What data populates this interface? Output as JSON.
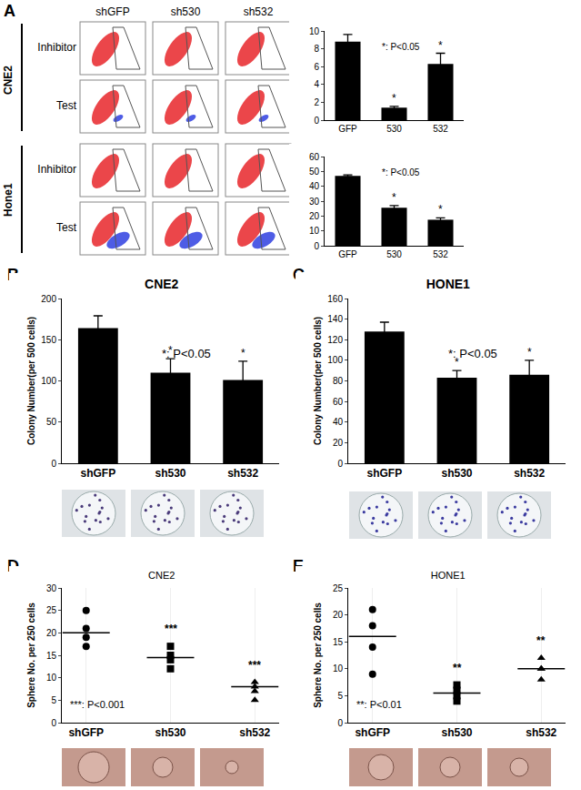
{
  "panel_labels": [
    "A",
    "B",
    "C",
    "D",
    "E"
  ],
  "flow_cytometry": {
    "columns": [
      "shGFP",
      "sh530",
      "sh532"
    ],
    "groups": [
      {
        "name": "CNE2",
        "rows": [
          "Inhibitor",
          "Test"
        ]
      },
      {
        "name": "Hone1",
        "rows": [
          "Inhibitor",
          "Test"
        ]
      }
    ]
  },
  "chart_data": [
    {
      "type": "bar",
      "categories": [
        "GFP",
        "530",
        "532"
      ],
      "values": [
        8.8,
        1.4,
        6.3
      ],
      "errors": [
        0.8,
        0.15,
        1.2
      ],
      "significance": [
        null,
        "*",
        "*"
      ],
      "annotations": [
        {
          "text": "*: P<0.05"
        }
      ],
      "color": "#000000",
      "ylim": [
        0,
        10
      ],
      "yticks": [
        0,
        2,
        4,
        6,
        8,
        10
      ],
      "grid": false
    },
    {
      "type": "bar",
      "categories": [
        "GFP",
        "530",
        "532"
      ],
      "values": [
        47,
        25.5,
        17.5
      ],
      "errors": [
        0.7,
        1.5,
        1.2
      ],
      "significance": [
        null,
        "*",
        "*"
      ],
      "annotations": [
        {
          "text": "*: P<0.05"
        }
      ],
      "color": "#000000",
      "ylim": [
        0,
        60
      ],
      "yticks": [
        0,
        10,
        20,
        30,
        40,
        50,
        60
      ],
      "grid": false
    },
    {
      "type": "bar",
      "title": "CNE2",
      "y_label": "Colony Number(per 500 cells)",
      "categories": [
        "shGFP",
        "sh530",
        "sh532"
      ],
      "values": [
        164,
        110,
        101
      ],
      "errors": [
        15,
        17,
        23
      ],
      "significance": [
        null,
        "*",
        "*"
      ],
      "annotations": [
        {
          "text": "*: P<0.05"
        }
      ],
      "color": "#000000",
      "ylim": [
        0,
        200
      ],
      "yticks": [
        0,
        50,
        100,
        150,
        200
      ],
      "grid": false
    },
    {
      "type": "bar",
      "title": "HONE1",
      "y_label": "Colony Number(per 500 cells)",
      "categories": [
        "shGFP",
        "sh530",
        "sh532"
      ],
      "values": [
        128,
        83,
        86
      ],
      "errors": [
        9,
        7,
        14
      ],
      "significance": [
        null,
        "*",
        "*"
      ],
      "annotations": [
        {
          "text": "*: P<0.05"
        }
      ],
      "color": "#000000",
      "ylim": [
        0,
        160
      ],
      "yticks": [
        0,
        20,
        40,
        60,
        80,
        100,
        120,
        140,
        160
      ],
      "grid": false
    },
    {
      "type": "scatter",
      "title": "CNE2",
      "y_label": "Sphere No. per 250 cells",
      "color": "#000000",
      "series": [
        {
          "name": "shGFP",
          "values": [
            25,
            21,
            19,
            17
          ],
          "mean": 20,
          "marker": "circle",
          "significance": null
        },
        {
          "name": "sh530",
          "values": [
            17,
            15,
            14,
            12
          ],
          "mean": 14.5,
          "marker": "square",
          "significance": "***"
        },
        {
          "name": "sh532",
          "values": [
            9,
            8,
            7,
            5
          ],
          "mean": 8,
          "marker": "triangle-up",
          "significance": "***"
        }
      ],
      "annotations": [
        {
          "text": "***: P<0.001"
        }
      ],
      "ylim": [
        0,
        30
      ],
      "yticks": [
        0,
        5,
        10,
        15,
        20,
        25,
        30
      ],
      "grid": false
    },
    {
      "type": "scatter",
      "title": "HONE1",
      "y_label": "Sphere No. per 250 cells",
      "color": "#000000",
      "series": [
        {
          "name": "shGFP",
          "values": [
            21,
            18,
            14,
            9
          ],
          "mean": 16,
          "marker": "circle",
          "significance": null
        },
        {
          "name": "sh530",
          "values": [
            7,
            6,
            5,
            4
          ],
          "mean": 5.5,
          "marker": "square",
          "significance": "**"
        },
        {
          "name": "sh532",
          "values": [
            12,
            10,
            10,
            8
          ],
          "mean": 10,
          "marker": "triangle-up",
          "significance": "**"
        }
      ],
      "annotations": [
        {
          "text": "**: P<0.01"
        }
      ],
      "ylim": [
        0,
        25
      ],
      "yticks": [
        0,
        5,
        10,
        15,
        20,
        25
      ],
      "grid": false
    }
  ]
}
